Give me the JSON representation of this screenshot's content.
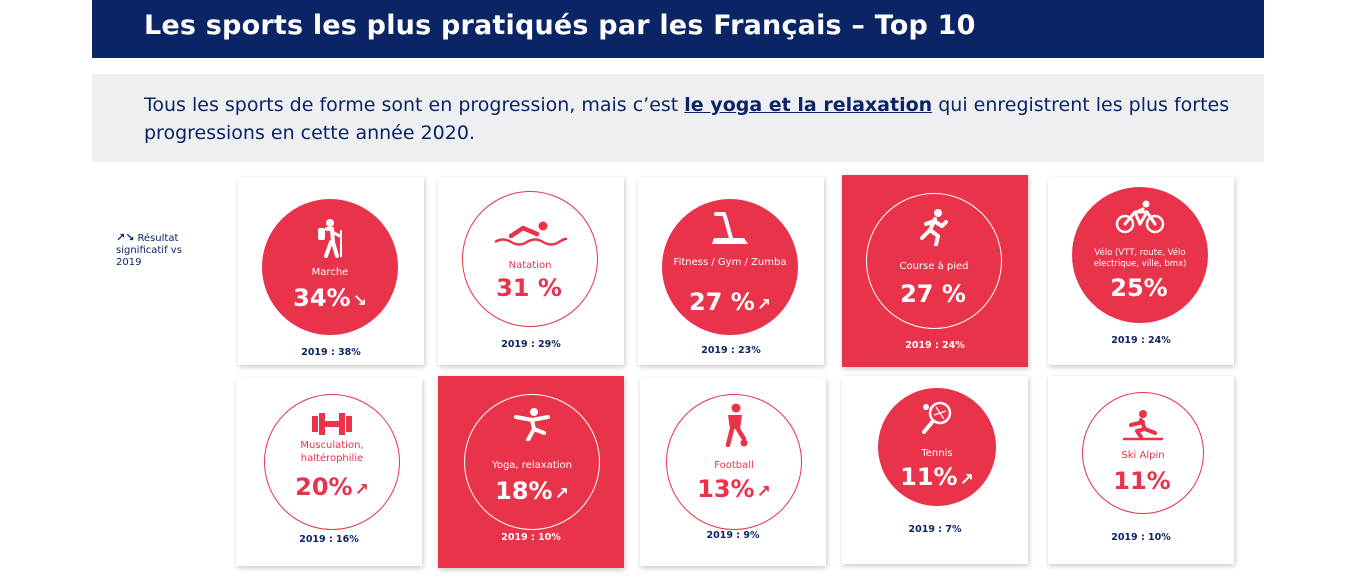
{
  "header": {
    "title": "Les sports les plus pratiqués par les Français – Top 10"
  },
  "banner": {
    "text_before": "Tous les sports de forme sont en progression, mais c’est ",
    "highlight": "le yoga et la relaxation",
    "text_after": " qui enregistrent les plus fortes progressions en cette année 2020."
  },
  "legend": {
    "arrows": "↗↘",
    "label": "Résultat significatif vs 2019"
  },
  "colors": {
    "navy": "#0b2466",
    "red": "#e8334a",
    "banner_bg": "#eeeff1"
  },
  "sports": [
    {
      "name": "Marche",
      "pct": "34%",
      "trend": "↘",
      "prev": "2019 : 38%",
      "icon": "hiker-icon"
    },
    {
      "name": "Natation",
      "pct": "31 %",
      "trend": "",
      "prev": "2019 : 29%",
      "icon": "swimmer-icon"
    },
    {
      "name": "Fitness / Gym / Zumba",
      "pct": "27 %",
      "trend": "↗",
      "prev": "2019 : 23%",
      "icon": "treadmill-icon"
    },
    {
      "name": "Course à pied",
      "pct": "27 %",
      "trend": "",
      "prev": "2019 : 24%",
      "icon": "runner-icon"
    },
    {
      "name": "Vélo (VTT, route, Vélo electrique, ville, bmx)",
      "pct": "25%",
      "trend": "",
      "prev": "2019 : 24%",
      "icon": "cyclist-icon"
    },
    {
      "name": "Musculation, haltérophilie",
      "pct": "20%",
      "trend": "↗",
      "prev": "2019 : 16%",
      "icon": "dumbbell-icon"
    },
    {
      "name": "Yoga, relaxation",
      "pct": "18%",
      "trend": "↗",
      "prev": "2019 : 10%",
      "icon": "yoga-icon"
    },
    {
      "name": "Football",
      "pct": "13%",
      "trend": "↗",
      "prev": "2019 : 9%",
      "icon": "football-player-icon"
    },
    {
      "name": "Tennis",
      "pct": "11%",
      "trend": "↗",
      "prev": "2019 : 7%",
      "icon": "tennis-racket-icon"
    },
    {
      "name": "Ski Alpin",
      "pct": "11%",
      "trend": "",
      "prev": "2019 : 10%",
      "icon": "skier-icon"
    }
  ]
}
